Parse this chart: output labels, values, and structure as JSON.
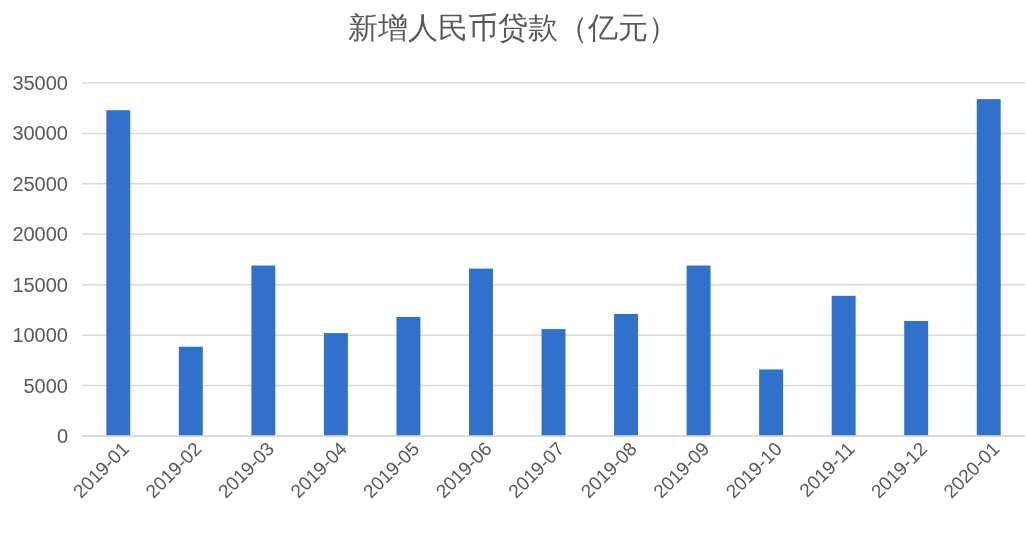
{
  "chart_data": {
    "type": "bar",
    "title": "新增人民币贷款（亿元）",
    "categories": [
      "2019-01",
      "2019-02",
      "2019-03",
      "2019-04",
      "2019-05",
      "2019-06",
      "2019-07",
      "2019-08",
      "2019-09",
      "2019-10",
      "2019-11",
      "2019-12",
      "2020-01"
    ],
    "values": [
      32300,
      8850,
      16900,
      10200,
      11800,
      16600,
      10600,
      12100,
      16900,
      6600,
      13900,
      11400,
      33400
    ],
    "color": "#3171cb",
    "ylim": [
      0,
      35000
    ],
    "yticks": [
      0,
      5000,
      10000,
      15000,
      20000,
      25000,
      30000,
      35000
    ],
    "grid": "y"
  }
}
